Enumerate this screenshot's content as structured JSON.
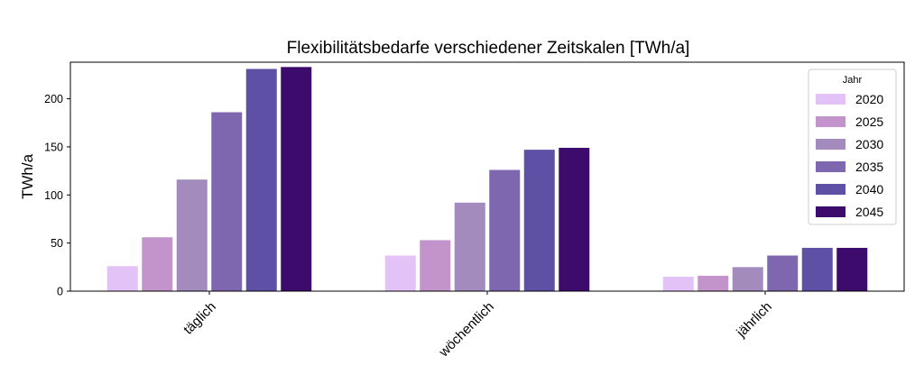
{
  "chart_data": {
    "type": "bar",
    "title": "Flexibilitätsbedarfe verschiedener Zeitskalen [TWh/a]",
    "xlabel": "",
    "ylabel": "TWh/a",
    "categories": [
      "täglich",
      "wöchentlich",
      "jährlich"
    ],
    "ylim": [
      0,
      238
    ],
    "yticks": [
      0,
      50,
      100,
      150,
      200
    ],
    "grid": false,
    "legend": {
      "title": "Jahr",
      "placement": "top-right"
    },
    "series": [
      {
        "name": "2020",
        "color": "#e2c2f7",
        "values": [
          26,
          37,
          15
        ]
      },
      {
        "name": "2025",
        "color": "#c393cc",
        "values": [
          56,
          53,
          16
        ]
      },
      {
        "name": "2030",
        "color": "#a38cbd",
        "values": [
          116,
          92,
          25
        ]
      },
      {
        "name": "2035",
        "color": "#7f67b0",
        "values": [
          186,
          126,
          37
        ]
      },
      {
        "name": "2040",
        "color": "#5d50a5",
        "values": [
          231,
          147,
          45
        ]
      },
      {
        "name": "2045",
        "color": "#3d0b6c",
        "values": [
          233,
          149,
          45
        ]
      }
    ]
  }
}
